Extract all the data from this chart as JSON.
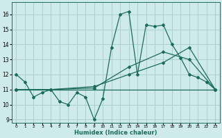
{
  "xlabel": "Humidex (Indice chaleur)",
  "background_color": "#ceeaea",
  "grid_color": "#aacece",
  "line_color": "#1a6b5a",
  "xlim": [
    -0.5,
    23.5
  ],
  "ylim": [
    8.8,
    16.8
  ],
  "yticks": [
    9,
    10,
    11,
    12,
    13,
    14,
    15,
    16
  ],
  "xticks": [
    0,
    1,
    2,
    3,
    4,
    5,
    6,
    7,
    8,
    9,
    10,
    11,
    12,
    13,
    14,
    15,
    16,
    17,
    18,
    19,
    20,
    21,
    22,
    23
  ],
  "series1_x": [
    0,
    1,
    2,
    3,
    4,
    5,
    6,
    7,
    8,
    9,
    10,
    11,
    12,
    13,
    14,
    15,
    16,
    17,
    18,
    19,
    20,
    21,
    22,
    23
  ],
  "series1_y": [
    12.0,
    11.5,
    10.5,
    10.8,
    11.0,
    10.2,
    10.0,
    10.8,
    10.5,
    9.0,
    10.4,
    13.8,
    16.0,
    16.2,
    12.0,
    15.3,
    15.2,
    15.3,
    14.0,
    13.1,
    12.0,
    11.8,
    11.5,
    11.0
  ],
  "series2_x": [
    0,
    4,
    9,
    13,
    17,
    20,
    23
  ],
  "series2_y": [
    11.0,
    11.0,
    11.1,
    12.5,
    13.5,
    13.0,
    11.0
  ],
  "series3_x": [
    0,
    4,
    9,
    13,
    17,
    20,
    23
  ],
  "series3_y": [
    11.0,
    11.0,
    11.2,
    12.0,
    12.8,
    13.8,
    11.0
  ],
  "series4_x": [
    0,
    23
  ],
  "series4_y": [
    11.0,
    11.0
  ]
}
